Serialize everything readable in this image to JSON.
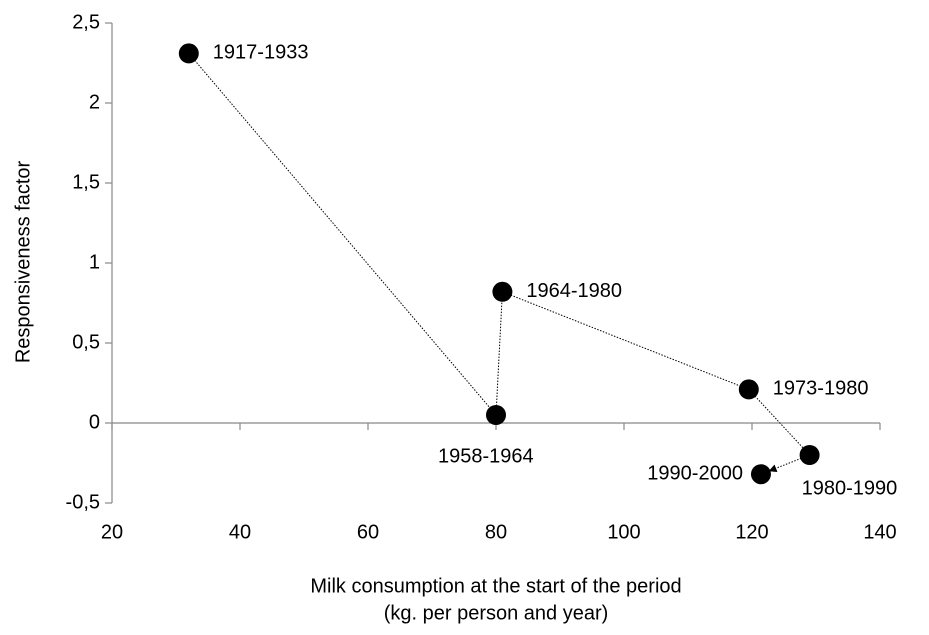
{
  "chart_data": {
    "type": "scatter",
    "xlabel": [
      "Milk consumption at the start of the period",
      "(kg. per person and year)"
    ],
    "ylabel": "Responsiveness factor",
    "x": [
      32,
      80,
      81,
      119.5,
      129,
      121.4
    ],
    "values": [
      2.31,
      0.05,
      0.82,
      0.21,
      -0.2,
      -0.32
    ],
    "point_labels": [
      "1917-1933",
      "1958-1964",
      "1964-1980",
      "1973-1980",
      "1980-1990",
      "1990-2000"
    ],
    "color": "#000000",
    "connect": true,
    "arrow_end": true,
    "xlim": [
      20,
      140
    ],
    "xticks": [
      20,
      40,
      60,
      80,
      100,
      120,
      140
    ],
    "ylim": [
      -0.5,
      2.5
    ],
    "yticks": [
      {
        "value": -0.5,
        "label": "-0,5"
      },
      0,
      {
        "value": 0.5,
        "label": "0,5"
      },
      1,
      {
        "value": 1.5,
        "label": "1,5"
      },
      2,
      {
        "value": 2.5,
        "label": "2,5"
      }
    ]
  }
}
